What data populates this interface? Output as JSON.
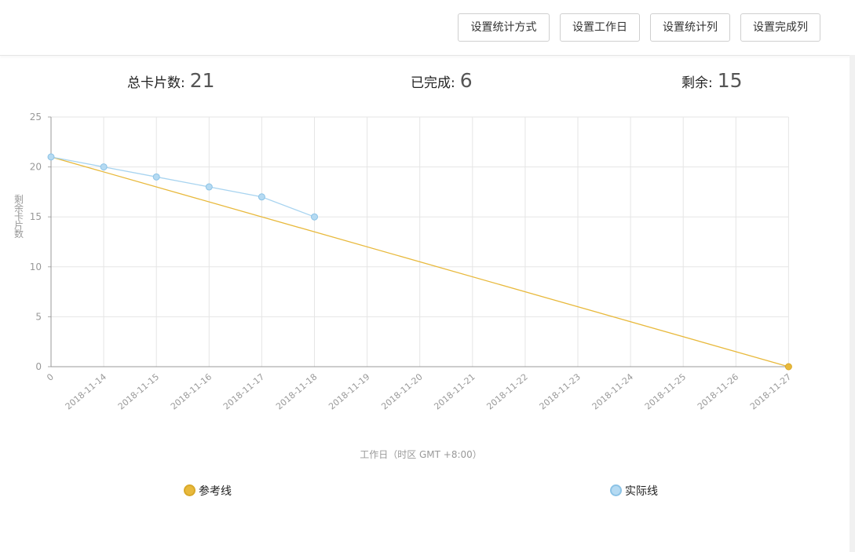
{
  "toolbar": {
    "buttons": [
      "设置统计方式",
      "设置工作日",
      "设置统计列",
      "设置完成列"
    ]
  },
  "stats": {
    "total_label": "总卡片数:",
    "total_value": "21",
    "done_label": "已完成:",
    "done_value": "6",
    "remaining_label": "剩余:",
    "remaining_value": "15"
  },
  "colors": {
    "reference": "#e8b93c",
    "actual": "#a8d4f0",
    "actual_marker": "#b5daf2",
    "grid": "#e5e5e5",
    "axis": "#999999"
  },
  "chart_data": {
    "type": "line",
    "xlabel": "工作日（时区 GMT +8:00）",
    "ylabel": "剩余卡片数",
    "ylim": [
      0,
      25
    ],
    "yticks": [
      0,
      5,
      10,
      15,
      20,
      25
    ],
    "categories": [
      "0",
      "2018-11-14",
      "2018-11-15",
      "2018-11-16",
      "2018-11-17",
      "2018-11-18",
      "2018-11-19",
      "2018-11-20",
      "2018-11-21",
      "2018-11-22",
      "2018-11-23",
      "2018-11-24",
      "2018-11-25",
      "2018-11-26",
      "2018-11-27"
    ],
    "grid": true,
    "legend_position": "bottom",
    "series": [
      {
        "name": "参考线",
        "points": [
          [
            0,
            21
          ],
          [
            14,
            0
          ]
        ]
      },
      {
        "name": "实际线",
        "points": [
          [
            0,
            21
          ],
          [
            1,
            20
          ],
          [
            2,
            19
          ],
          [
            3,
            18
          ],
          [
            4,
            17
          ],
          [
            5,
            15
          ]
        ]
      }
    ]
  }
}
